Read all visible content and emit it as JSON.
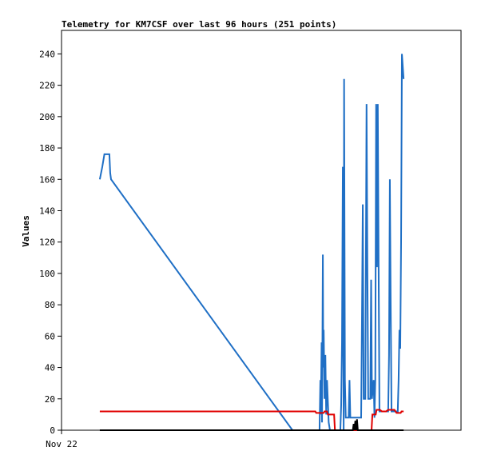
{
  "chart_data": {
    "type": "line",
    "title": "Telemetry for KM7CSF over last 96 hours (251 points)",
    "xlabel": "",
    "ylabel": "Values",
    "x_tick_labels": [
      "Nov 22"
    ],
    "x_range": [
      0,
      96
    ],
    "ylim": [
      0,
      255
    ],
    "y_ticks": [
      0,
      20,
      40,
      60,
      80,
      100,
      120,
      140,
      160,
      180,
      200,
      220,
      240
    ],
    "grid": false,
    "legend": "none",
    "series": [
      {
        "color": "#1f6fc5",
        "points": [
          [
            9.2,
            160
          ],
          [
            9.8,
            168
          ],
          [
            10.3,
            176
          ],
          [
            11.5,
            176
          ],
          [
            11.7,
            164
          ],
          [
            11.9,
            160
          ],
          [
            55.5,
            0
          ],
          [
            62.0,
            0
          ],
          [
            62.2,
            32
          ],
          [
            62.3,
            10
          ],
          [
            62.5,
            56
          ],
          [
            62.6,
            5
          ],
          [
            62.8,
            112
          ],
          [
            62.9,
            40
          ],
          [
            63.0,
            64
          ],
          [
            63.2,
            20
          ],
          [
            63.4,
            48
          ],
          [
            63.6,
            10
          ],
          [
            63.8,
            32
          ],
          [
            64.2,
            5
          ],
          [
            64.5,
            0
          ],
          [
            67.0,
            0
          ],
          [
            67.2,
            16
          ],
          [
            67.4,
            56
          ],
          [
            67.6,
            168
          ],
          [
            67.8,
            0
          ],
          [
            67.9,
            224
          ],
          [
            68.1,
            32
          ],
          [
            68.3,
            8
          ],
          [
            69.0,
            8
          ],
          [
            69.2,
            32
          ],
          [
            69.4,
            8
          ],
          [
            72.0,
            8
          ],
          [
            72.2,
            72
          ],
          [
            72.4,
            144
          ],
          [
            72.6,
            20
          ],
          [
            73.0,
            20
          ],
          [
            73.3,
            208
          ],
          [
            73.5,
            104
          ],
          [
            73.7,
            20
          ],
          [
            74.2,
            20
          ],
          [
            74.4,
            96
          ],
          [
            74.6,
            20
          ],
          [
            75.0,
            32
          ],
          [
            75.2,
            8
          ],
          [
            75.4,
            32
          ],
          [
            75.6,
            208
          ],
          [
            75.8,
            104
          ],
          [
            76.0,
            208
          ],
          [
            76.2,
            104
          ],
          [
            76.4,
            12
          ],
          [
            78.5,
            12
          ],
          [
            78.7,
            48
          ],
          [
            78.9,
            160
          ],
          [
            79.1,
            80
          ],
          [
            79.3,
            12
          ],
          [
            80.8,
            12
          ],
          [
            81.0,
            32
          ],
          [
            81.2,
            64
          ],
          [
            81.4,
            52
          ],
          [
            81.6,
            120
          ],
          [
            81.8,
            240
          ],
          [
            82.0,
            232
          ],
          [
            82.2,
            224
          ]
        ]
      },
      {
        "color": "#e00000",
        "points": [
          [
            9.2,
            12
          ],
          [
            61.0,
            12
          ],
          [
            61.2,
            11
          ],
          [
            63.0,
            11
          ],
          [
            63.2,
            12
          ],
          [
            63.8,
            12
          ],
          [
            64.0,
            10
          ],
          [
            65.5,
            10
          ],
          [
            65.7,
            0
          ],
          [
            74.5,
            0
          ],
          [
            74.7,
            10
          ],
          [
            75.5,
            10
          ],
          [
            75.7,
            13
          ],
          [
            76.5,
            13
          ],
          [
            77.0,
            12
          ],
          [
            78.0,
            12
          ],
          [
            78.5,
            13
          ],
          [
            80.0,
            13
          ],
          [
            80.5,
            11
          ],
          [
            81.5,
            11
          ],
          [
            81.7,
            12
          ],
          [
            82.2,
            12
          ]
        ]
      },
      {
        "color": "#000000",
        "points": [
          [
            9.2,
            0
          ],
          [
            70.0,
            0
          ],
          [
            70.2,
            4
          ],
          [
            70.4,
            0
          ],
          [
            70.6,
            6
          ],
          [
            70.8,
            0
          ],
          [
            71.0,
            7
          ],
          [
            71.2,
            0
          ],
          [
            82.2,
            0
          ]
        ]
      }
    ]
  }
}
